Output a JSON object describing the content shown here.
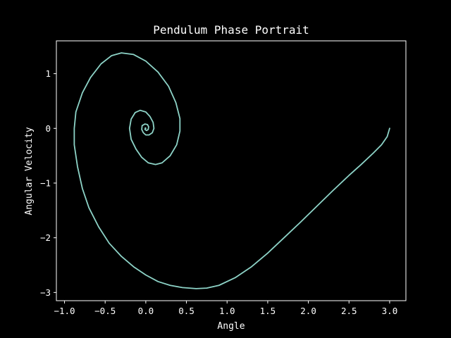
{
  "chart_data": {
    "type": "line",
    "title": "Pendulum Phase Portrait",
    "xlabel": "Angle",
    "ylabel": "Angular Velocity",
    "xlim": [
      -1.1,
      3.2
    ],
    "ylim": [
      -3.15,
      1.6
    ],
    "xticks": [
      -1.0,
      -0.5,
      0.0,
      0.5,
      1.0,
      1.5,
      2.0,
      2.5,
      3.0
    ],
    "xtick_labels": [
      "−1.0",
      "−0.5",
      "0.0",
      "0.5",
      "1.0",
      "1.5",
      "2.0",
      "2.5",
      "3.0"
    ],
    "yticks": [
      1,
      0,
      -1,
      -2,
      -3
    ],
    "ytick_labels": [
      "1",
      "0",
      "−1",
      "−2",
      "−3"
    ],
    "grid": false,
    "legend": "none",
    "colors": {
      "background": "#000000",
      "axes": "#ffffff",
      "text": "#ffffff",
      "line": "#8dd3c7"
    },
    "series": [
      {
        "points": [
          [
            3.0,
            0.0
          ],
          [
            2.97,
            -0.15
          ],
          [
            2.9,
            -0.3
          ],
          [
            2.8,
            -0.45
          ],
          [
            2.65,
            -0.66
          ],
          [
            2.5,
            -0.86
          ],
          [
            2.3,
            -1.14
          ],
          [
            2.1,
            -1.43
          ],
          [
            1.9,
            -1.72
          ],
          [
            1.7,
            -2.0
          ],
          [
            1.5,
            -2.28
          ],
          [
            1.3,
            -2.53
          ],
          [
            1.1,
            -2.73
          ],
          [
            0.9,
            -2.87
          ],
          [
            0.75,
            -2.92
          ],
          [
            0.62,
            -2.93
          ],
          [
            0.45,
            -2.91
          ],
          [
            0.3,
            -2.87
          ],
          [
            0.15,
            -2.8
          ],
          [
            0.0,
            -2.68
          ],
          [
            -0.15,
            -2.53
          ],
          [
            -0.3,
            -2.34
          ],
          [
            -0.45,
            -2.1
          ],
          [
            -0.58,
            -1.8
          ],
          [
            -0.7,
            -1.45
          ],
          [
            -0.78,
            -1.1
          ],
          [
            -0.84,
            -0.7
          ],
          [
            -0.88,
            -0.3
          ],
          [
            -0.88,
            0.0
          ],
          [
            -0.86,
            0.3
          ],
          [
            -0.78,
            0.65
          ],
          [
            -0.68,
            0.93
          ],
          [
            -0.55,
            1.18
          ],
          [
            -0.42,
            1.33
          ],
          [
            -0.3,
            1.38
          ],
          [
            -0.15,
            1.35
          ],
          [
            0.0,
            1.23
          ],
          [
            0.15,
            1.03
          ],
          [
            0.28,
            0.77
          ],
          [
            0.37,
            0.47
          ],
          [
            0.42,
            0.18
          ],
          [
            0.42,
            -0.05
          ],
          [
            0.38,
            -0.3
          ],
          [
            0.3,
            -0.5
          ],
          [
            0.2,
            -0.63
          ],
          [
            0.12,
            -0.66
          ],
          [
            0.03,
            -0.63
          ],
          [
            -0.05,
            -0.53
          ],
          [
            -0.12,
            -0.38
          ],
          [
            -0.18,
            -0.2
          ],
          [
            -0.2,
            0.0
          ],
          [
            -0.18,
            0.17
          ],
          [
            -0.13,
            0.29
          ],
          [
            -0.07,
            0.33
          ],
          [
            0.0,
            0.3
          ],
          [
            0.05,
            0.22
          ],
          [
            0.09,
            0.11
          ],
          [
            0.1,
            0.0
          ],
          [
            0.08,
            -0.08
          ],
          [
            0.04,
            -0.12
          ],
          [
            0.0,
            -0.12
          ],
          [
            -0.03,
            -0.08
          ],
          [
            -0.05,
            -0.02
          ],
          [
            -0.045,
            0.05
          ],
          [
            -0.01,
            0.08
          ],
          [
            0.02,
            0.07
          ],
          [
            0.035,
            0.03
          ],
          [
            0.03,
            -0.02
          ],
          [
            0.01,
            -0.04
          ],
          [
            -0.01,
            -0.02
          ],
          [
            -0.005,
            0.01
          ],
          [
            0.0,
            0.0
          ]
        ]
      }
    ]
  }
}
